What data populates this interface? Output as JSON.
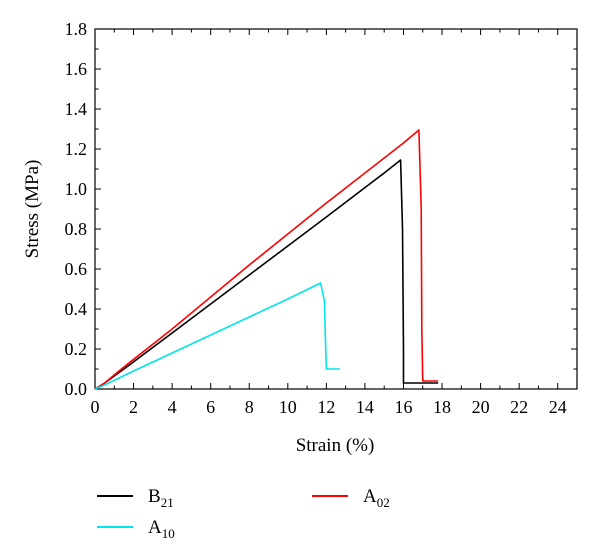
{
  "chart_data": {
    "type": "line",
    "xlabel": "Strain (%)",
    "ylabel": "Stress (MPa)",
    "xlim": [
      0,
      25
    ],
    "ylim": [
      0,
      1.8
    ],
    "xticks": [
      0,
      2,
      4,
      6,
      8,
      10,
      12,
      14,
      16,
      18,
      20,
      22,
      24
    ],
    "yticks": [
      0.0,
      0.2,
      0.4,
      0.6,
      0.8,
      1.0,
      1.2,
      1.4,
      1.6,
      1.8
    ],
    "xtick_labels": [
      "0",
      "2",
      "4",
      "6",
      "8",
      "10",
      "12",
      "14",
      "16",
      "18",
      "20",
      "22",
      "24"
    ],
    "ytick_labels": [
      "0.0",
      "0.2",
      "0.4",
      "0.6",
      "0.8",
      "1.0",
      "1.2",
      "1.4",
      "1.6",
      "1.8"
    ],
    "grid": false,
    "legend_position": "bottom",
    "series": [
      {
        "base": "B",
        "sub": "21",
        "color": "#000000",
        "x": [
          0,
          0.5,
          1.5,
          4,
          8,
          12,
          15,
          15.85,
          15.95,
          16.0,
          16.0,
          17.8
        ],
        "y": [
          0,
          0.03,
          0.1,
          0.28,
          0.57,
          0.86,
          1.08,
          1.145,
          0.8,
          0.2,
          0.03,
          0.03
        ]
      },
      {
        "base": "A",
        "sub": "02",
        "color": "#ff0000",
        "x": [
          0,
          0.5,
          1.5,
          4,
          8,
          12,
          16,
          16.8,
          16.92,
          16.95,
          17.0,
          17.8
        ],
        "y": [
          0,
          0.03,
          0.11,
          0.3,
          0.62,
          0.93,
          1.23,
          1.295,
          0.9,
          0.3,
          0.04,
          0.04
        ]
      },
      {
        "base": "A",
        "sub": "10",
        "color": "#00e5ee",
        "x": [
          0,
          0.5,
          2,
          4,
          6,
          8,
          10,
          11.7,
          11.9,
          11.95,
          12.0,
          12.0,
          12.7
        ],
        "y": [
          0,
          0.02,
          0.09,
          0.18,
          0.27,
          0.36,
          0.45,
          0.53,
          0.44,
          0.25,
          0.1,
          0.1,
          0.1
        ]
      }
    ]
  }
}
